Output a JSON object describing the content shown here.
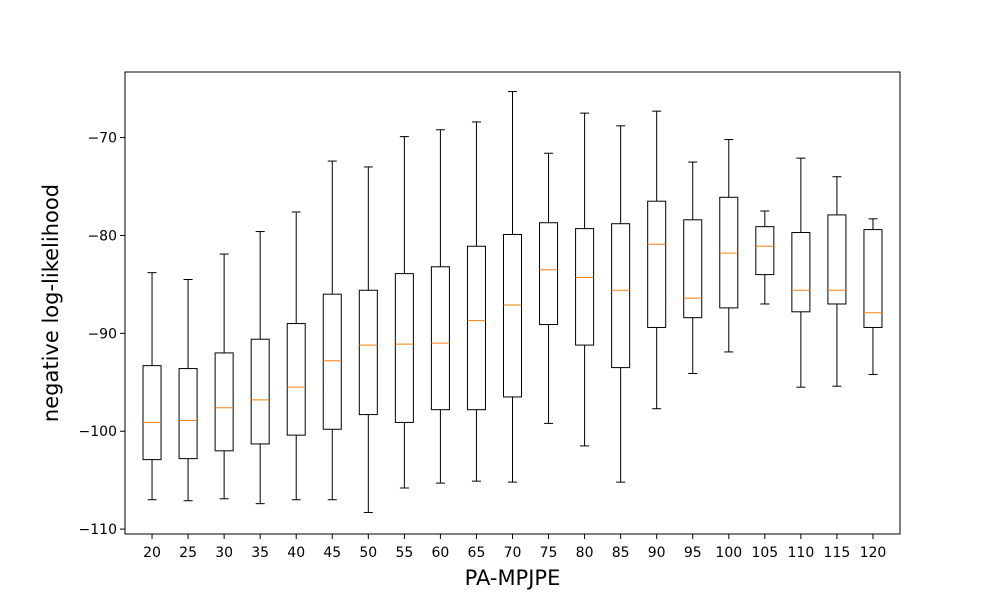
{
  "chart_data": {
    "type": "box",
    "title": "",
    "xlabel": "PA-MPJPE",
    "ylabel": "negative log-likelihood",
    "ylim": [
      -110.5,
      -63.3
    ],
    "yticks": [
      -110,
      -100,
      -90,
      -80,
      -70
    ],
    "ytick_labels": [
      "−110",
      "−100",
      "−90",
      "−80",
      "−70"
    ],
    "grid": false,
    "median_color": "#ff7f0e",
    "box_color": "#000000",
    "categories": [
      "20",
      "25",
      "30",
      "35",
      "40",
      "45",
      "50",
      "55",
      "60",
      "65",
      "70",
      "75",
      "80",
      "85",
      "90",
      "95",
      "100",
      "105",
      "110",
      "115",
      "120"
    ],
    "boxes": [
      {
        "whislo": -107.0,
        "q1": -102.9,
        "med": -99.1,
        "q3": -93.3,
        "whishi": -83.8
      },
      {
        "whislo": -107.1,
        "q1": -102.8,
        "med": -98.9,
        "q3": -93.6,
        "whishi": -84.5
      },
      {
        "whislo": -106.9,
        "q1": -102.0,
        "med": -97.6,
        "q3": -92.0,
        "whishi": -81.9
      },
      {
        "whislo": -107.4,
        "q1": -101.3,
        "med": -96.8,
        "q3": -90.6,
        "whishi": -79.6
      },
      {
        "whislo": -107.0,
        "q1": -100.4,
        "med": -95.5,
        "q3": -89.0,
        "whishi": -77.6
      },
      {
        "whislo": -107.0,
        "q1": -99.8,
        "med": -92.8,
        "q3": -86.0,
        "whishi": -72.4
      },
      {
        "whislo": -108.3,
        "q1": -98.3,
        "med": -91.2,
        "q3": -85.6,
        "whishi": -73.0
      },
      {
        "whislo": -105.8,
        "q1": -99.1,
        "med": -91.1,
        "q3": -83.9,
        "whishi": -69.9
      },
      {
        "whislo": -105.3,
        "q1": -97.8,
        "med": -91.0,
        "q3": -83.2,
        "whishi": -69.2
      },
      {
        "whislo": -105.1,
        "q1": -97.8,
        "med": -88.7,
        "q3": -81.1,
        "whishi": -68.4
      },
      {
        "whislo": -105.2,
        "q1": -96.5,
        "med": -87.1,
        "q3": -79.9,
        "whishi": -65.3
      },
      {
        "whislo": -99.2,
        "q1": -89.1,
        "med": -83.5,
        "q3": -78.7,
        "whishi": -71.6
      },
      {
        "whislo": -101.5,
        "q1": -91.2,
        "med": -84.3,
        "q3": -79.3,
        "whishi": -67.5
      },
      {
        "whislo": -105.2,
        "q1": -93.5,
        "med": -85.6,
        "q3": -78.8,
        "whishi": -68.8
      },
      {
        "whislo": -97.7,
        "q1": -89.4,
        "med": -80.9,
        "q3": -76.5,
        "whishi": -67.3
      },
      {
        "whislo": -94.1,
        "q1": -88.4,
        "med": -86.4,
        "q3": -78.4,
        "whishi": -72.5
      },
      {
        "whislo": -91.9,
        "q1": -87.4,
        "med": -81.8,
        "q3": -76.1,
        "whishi": -70.2
      },
      {
        "whislo": -87.0,
        "q1": -84.0,
        "med": -81.1,
        "q3": -79.1,
        "whishi": -77.5
      },
      {
        "whislo": -95.5,
        "q1": -87.8,
        "med": -85.6,
        "q3": -79.7,
        "whishi": -72.1
      },
      {
        "whislo": -95.4,
        "q1": -87.0,
        "med": -85.6,
        "q3": -77.9,
        "whishi": -74.0
      },
      {
        "whislo": -94.2,
        "q1": -89.4,
        "med": -87.9,
        "q3": -79.4,
        "whishi": -78.3
      }
    ]
  }
}
